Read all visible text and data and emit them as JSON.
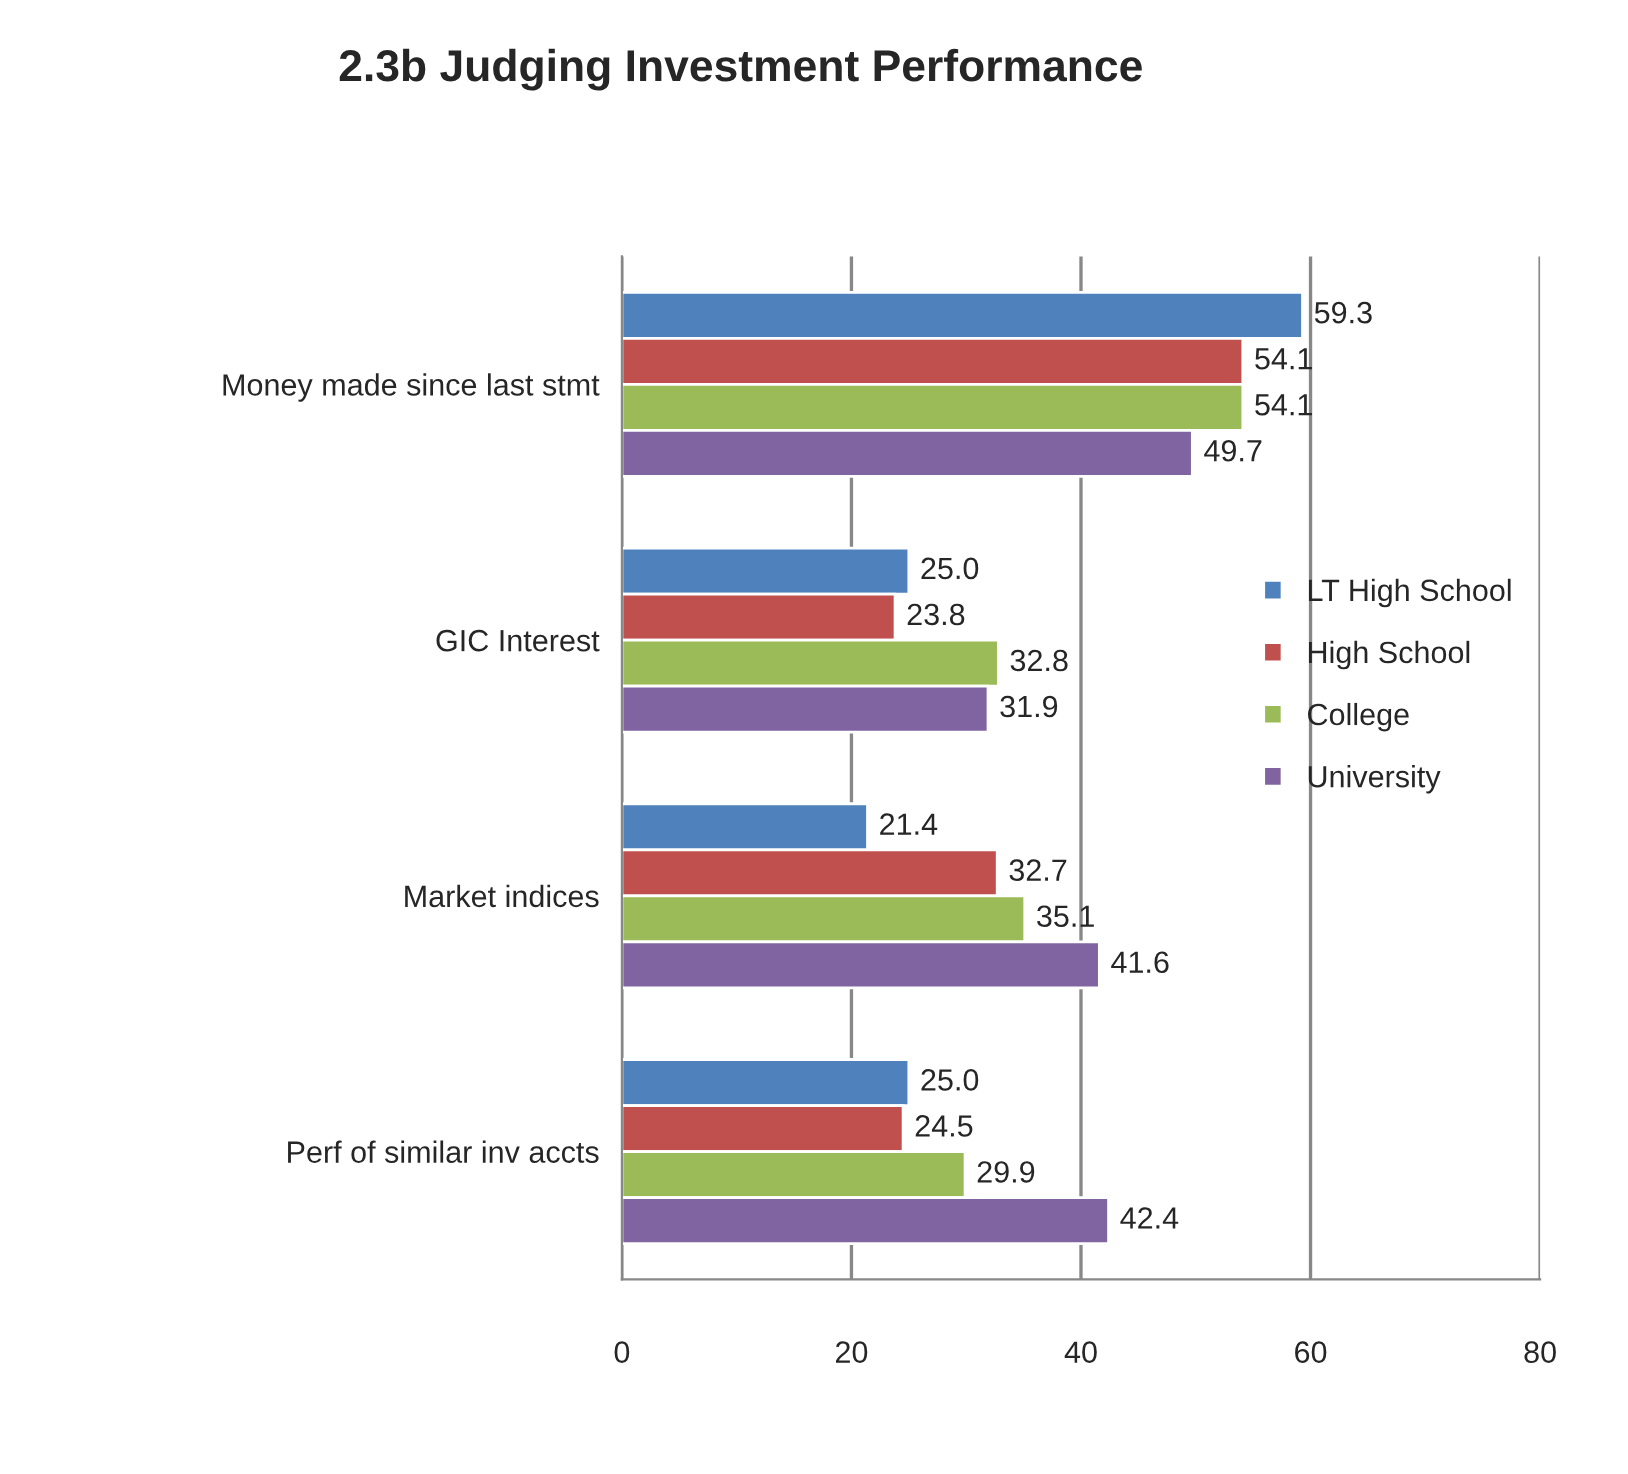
{
  "chart_data": {
    "type": "bar",
    "orientation": "horizontal",
    "title": "2.3b Judging Investment Performance",
    "categories": [
      "Money made since last stmt",
      "GIC Interest",
      "Market indices",
      "Perf of similar inv accts"
    ],
    "series": [
      {
        "name": "LT High School",
        "color": "#4f81bd",
        "values": [
          59.3,
          25.0,
          21.4,
          25.0
        ],
        "value_labels": [
          "59.3",
          "25.0",
          "21.4",
          "25.0"
        ]
      },
      {
        "name": "High School",
        "color": "#c0504d",
        "values": [
          54.1,
          23.8,
          32.7,
          24.5
        ],
        "value_labels": [
          "54.1",
          "23.8",
          "32.7",
          "24.5"
        ]
      },
      {
        "name": "College",
        "color": "#9bbb59",
        "values": [
          54.1,
          32.8,
          35.1,
          29.9
        ],
        "value_labels": [
          "54.1",
          "32.8",
          "35.1",
          "29.9"
        ]
      },
      {
        "name": "University",
        "color": "#8064a2",
        "values": [
          49.7,
          31.9,
          41.6,
          42.4
        ],
        "value_labels": [
          "49.7",
          "31.9",
          "41.6",
          "42.4"
        ]
      }
    ],
    "xlim": [
      0,
      80
    ],
    "xticks": [
      0,
      20,
      40,
      60,
      80
    ],
    "grid": "x",
    "legend": "right"
  }
}
